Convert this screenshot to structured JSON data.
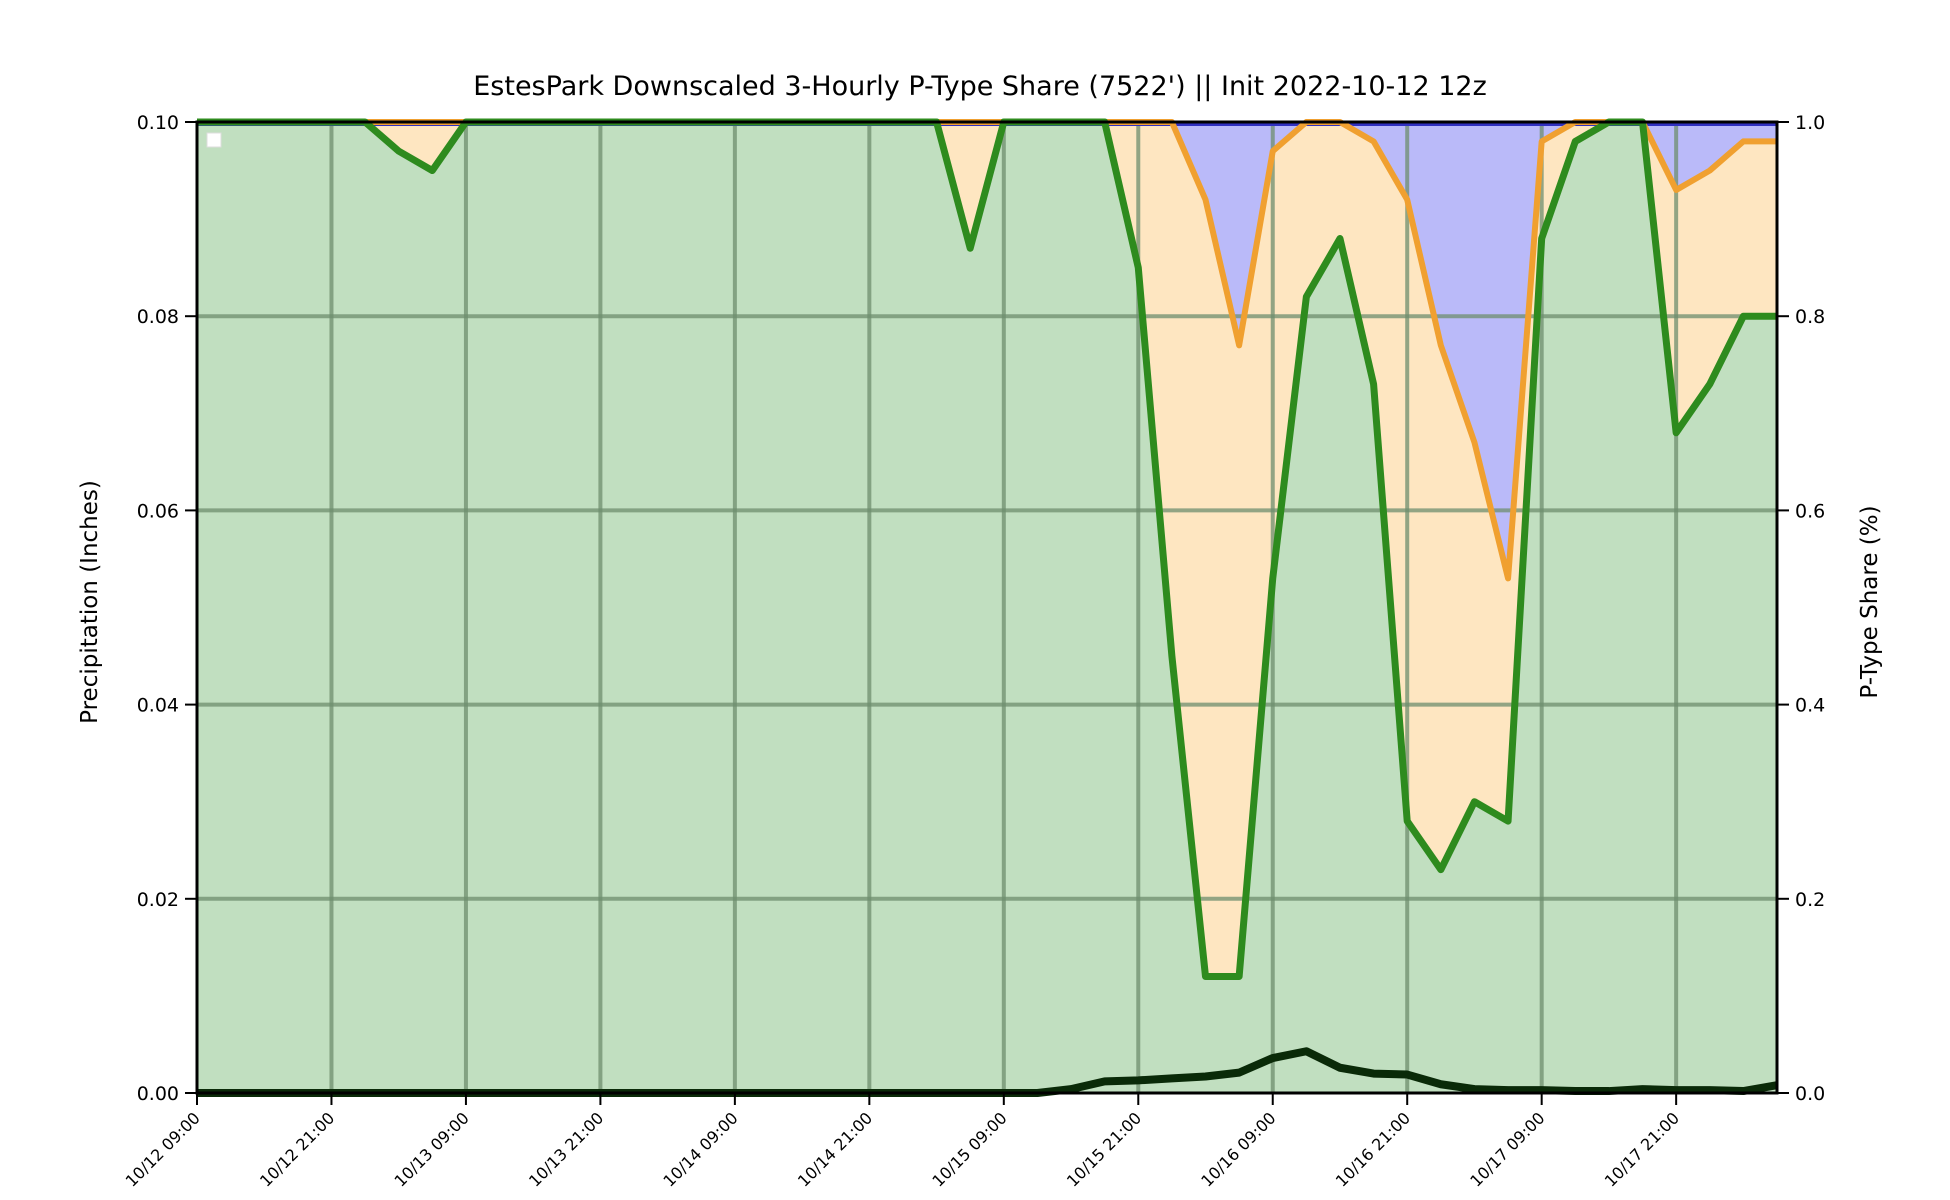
{
  "chart_data": {
    "type": "area",
    "title": "EstesPark Downscaled 3-Hourly P-Type Share (7522') || Init 2022-10-12 12z",
    "ylabel_left": "Precipitation (Inches)",
    "ylabel_right": "P-Type Share (%)",
    "ylim_left": [
      0,
      0.1
    ],
    "ylim_right": [
      0,
      1.0
    ],
    "yticks_left": [
      "0.00",
      "0.02",
      "0.04",
      "0.06",
      "0.08",
      "0.10"
    ],
    "yticks_right": [
      "0.0",
      "0.2",
      "0.4",
      "0.6",
      "0.8",
      "1.0"
    ],
    "xtick_labels": [
      "10/12 09:00",
      "10/12 21:00",
      "10/13 09:00",
      "10/13 21:00",
      "10/14 09:00",
      "10/14 21:00",
      "10/15 09:00",
      "10/15 21:00",
      "10/16 09:00",
      "10/16 21:00",
      "10/17 09:00",
      "10/17 21:00"
    ],
    "grid": true,
    "colors": {
      "rain_fill": "#c1dfc0",
      "rain_line": "#2e8b1e",
      "mixed_fill": "#fee6c1",
      "mixed_line": "#f0a030",
      "snow_fill": "#babaf9",
      "snow_line": "#3030c0",
      "precip_line": "#0a2a08",
      "grid": "#6e8e6e"
    },
    "series": [
      {
        "key": "rain_share",
        "values": [
          1.0,
          1.0,
          1.0,
          1.0,
          1.0,
          1.0,
          0.97,
          0.95,
          1.0,
          1.0,
          1.0,
          1.0,
          1.0,
          1.0,
          1.0,
          1.0,
          1.0,
          1.0,
          1.0,
          1.0,
          1.0,
          1.0,
          1.0,
          0.87,
          1.0,
          1.0,
          1.0,
          1.0,
          0.85,
          0.45,
          0.12,
          0.12,
          0.53,
          0.82,
          0.88,
          0.73,
          0.28,
          0.23,
          0.3,
          0.28,
          0.88,
          0.98,
          1.0,
          1.0,
          0.68,
          0.73,
          0.8,
          0.8
        ]
      },
      {
        "key": "rain_plus_mixed_share",
        "values": [
          1.0,
          1.0,
          1.0,
          1.0,
          1.0,
          1.0,
          1.0,
          1.0,
          1.0,
          1.0,
          1.0,
          1.0,
          1.0,
          1.0,
          1.0,
          1.0,
          1.0,
          1.0,
          1.0,
          1.0,
          1.0,
          1.0,
          1.0,
          1.0,
          1.0,
          1.0,
          1.0,
          1.0,
          1.0,
          1.0,
          0.92,
          0.77,
          0.97,
          1.0,
          1.0,
          0.98,
          0.92,
          0.77,
          0.67,
          0.53,
          0.98,
          1.0,
          1.0,
          1.0,
          0.93,
          0.95,
          0.98,
          0.98
        ]
      },
      {
        "key": "precipitation_in",
        "values": [
          0,
          0,
          0,
          0,
          0,
          0,
          0,
          0,
          0,
          0,
          0,
          0,
          0,
          0,
          0,
          0,
          0,
          0,
          0,
          0,
          0,
          0,
          0,
          0,
          0,
          0,
          0.0004,
          0.0012,
          0.0013,
          0.0015,
          0.0017,
          0.0021,
          0.0036,
          0.0043,
          0.0026,
          0.002,
          0.0019,
          0.0009,
          0.0004,
          0.0003,
          0.0003,
          0.0002,
          0.0002,
          0.0004,
          0.0003,
          0.0003,
          0.0002,
          0.0008
        ]
      }
    ]
  },
  "legend": {
    "box": ""
  }
}
